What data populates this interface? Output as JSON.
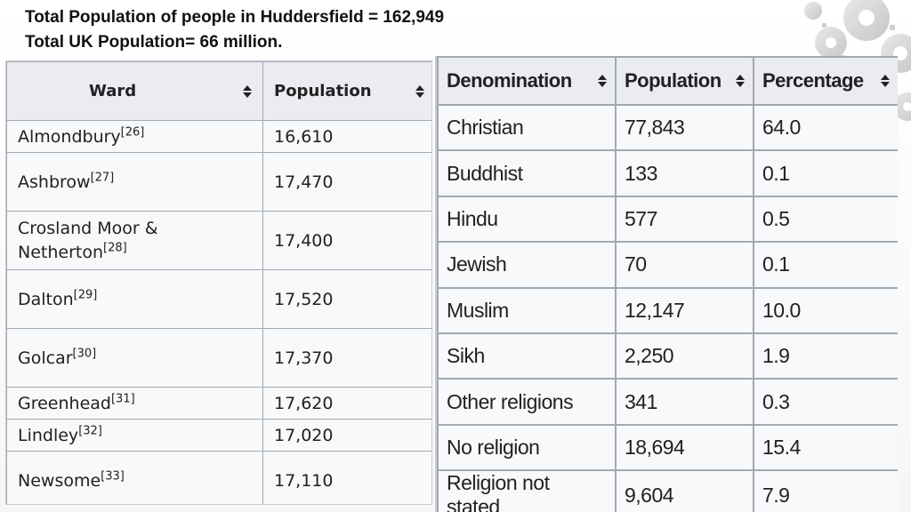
{
  "header": {
    "line1": "Total Population of people in Huddersfield =  162,949",
    "line2": "Total UK Population= 66 million."
  },
  "ward_table": {
    "columns": [
      "Ward",
      "Population"
    ],
    "rows": [
      {
        "ward": "Almondbury",
        "ref": "[26]",
        "population": "16,610"
      },
      {
        "ward": "Ashbrow",
        "ref": "[27]",
        "population": "17,470"
      },
      {
        "ward": "Crosland Moor &",
        "ward2": "Netherton",
        "ref": "[28]",
        "population": "17,400"
      },
      {
        "ward": "Dalton",
        "ref": "[29]",
        "population": "17,520"
      },
      {
        "ward": "Golcar",
        "ref": "[30]",
        "population": "17,370"
      },
      {
        "ward": "Greenhead",
        "ref": "[31]",
        "population": "17,620"
      },
      {
        "ward": "Lindley",
        "ref": "[32]",
        "population": "17,020"
      },
      {
        "ward": "Newsome",
        "ref": "[33]",
        "population": "17,110"
      }
    ]
  },
  "religion_table": {
    "columns": [
      "Denomination",
      "Population",
      "Percentage"
    ],
    "rows": [
      {
        "denomination": "Christian",
        "population": "77,843",
        "percentage": "64.0"
      },
      {
        "denomination": "Buddhist",
        "population": "133",
        "percentage": "0.1"
      },
      {
        "denomination": "Hindu",
        "population": "577",
        "percentage": "0.5"
      },
      {
        "denomination": "Jewish",
        "population": "70",
        "percentage": "0.1"
      },
      {
        "denomination": "Muslim",
        "population": "12,147",
        "percentage": "10.0"
      },
      {
        "denomination": "Sikh",
        "population": "2,250",
        "percentage": "1.9"
      },
      {
        "denomination": "Other religions",
        "population": "341",
        "percentage": "0.3"
      },
      {
        "denomination": "No religion",
        "population": "18,694",
        "percentage": "15.4"
      },
      {
        "denomination": "Religion not stated",
        "population": "9,604",
        "percentage": "7.9"
      }
    ]
  },
  "colors": {
    "header_bg": "#eaecf0",
    "cell_bg": "#f8f9fa",
    "border": "#a2a9b1",
    "text": "#202122"
  },
  "icons": {
    "sort": "sort-icon",
    "decoration": "gears-icon"
  }
}
